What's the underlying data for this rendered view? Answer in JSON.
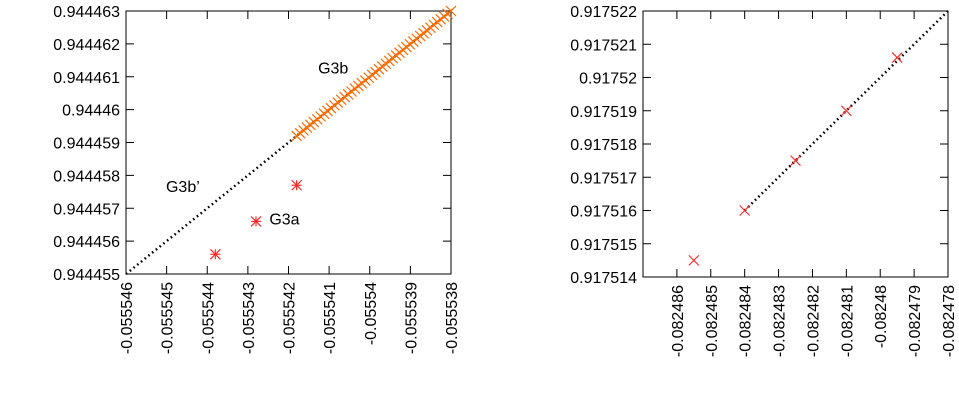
{
  "chart_data": [
    {
      "type": "scatter",
      "title": "",
      "xlabel": "",
      "ylabel": "",
      "xlim": [
        -0.055546,
        -0.055538
      ],
      "ylim": [
        0.944455,
        0.944463
      ],
      "grid": false,
      "x_tick_values": [
        -0.055546,
        -0.055545,
        -0.055544,
        -0.055543,
        -0.055542,
        -0.055541,
        -0.05554,
        -0.055539,
        -0.055538
      ],
      "x_tick_labels": [
        "-0.055546",
        "-0.055545",
        "-0.055544",
        "-0.055543",
        "-0.055542",
        "-0.055541",
        "-0.05554",
        "-0.055539",
        "-0.055538"
      ],
      "y_tick_values": [
        0.944455,
        0.944456,
        0.944457,
        0.944458,
        0.944459,
        0.94446,
        0.944461,
        0.944462,
        0.944463
      ],
      "y_tick_labels": [
        "0.944455",
        "0.944456",
        "0.944457",
        "0.944458",
        "0.944459",
        "0.94446",
        "0.944461",
        "0.944462",
        "0.944463"
      ],
      "dotted_line": {
        "x": [
          -0.055546,
          -0.055538
        ],
        "y": [
          0.944455,
          0.944463
        ],
        "color": "#000000"
      },
      "series": [
        {
          "marker": "star",
          "color": "#ff2a2a",
          "points": [
            {
              "x": -0.0555438,
              "y": 0.9444556
            },
            {
              "x": -0.0555428,
              "y": 0.9444566
            },
            {
              "x": -0.0555418,
              "y": 0.9444577
            }
          ]
        },
        {
          "marker": "x",
          "color": "#ff6a00",
          "dense_diagonal": {
            "x_start": -0.0555418,
            "x_end": -0.055538,
            "count": 46
          }
        }
      ],
      "annotations": [
        {
          "text": "G3b",
          "x": -0.0555409,
          "y": 0.9444611
        },
        {
          "text": "G3b’",
          "x": -0.0555446,
          "y": 0.9444575
        },
        {
          "text": "G3a",
          "x": -0.0555421,
          "y": 0.9444565
        }
      ]
    },
    {
      "type": "scatter",
      "title": "",
      "xlabel": "",
      "ylabel": "",
      "xlim": [
        -0.082487,
        -0.082478
      ],
      "ylim": [
        0.917514,
        0.917522
      ],
      "grid": false,
      "x_tick_values": [
        -0.082486,
        -0.082485,
        -0.082484,
        -0.082483,
        -0.082482,
        -0.082481,
        -0.08248,
        -0.082479,
        -0.082478
      ],
      "x_tick_labels": [
        "-0.082486",
        "-0.082485",
        "-0.082484",
        "-0.082483",
        "-0.082482",
        "-0.082481",
        "-0.08248",
        "-0.082479",
        "-0.082478"
      ],
      "y_tick_values": [
        0.917514,
        0.917515,
        0.917516,
        0.917517,
        0.917518,
        0.917519,
        0.91752,
        0.917521,
        0.917522
      ],
      "y_tick_labels": [
        "0.917514",
        "0.917515",
        "0.917516",
        "0.917517",
        "0.917518",
        "0.917519",
        "0.91752",
        "0.917521",
        "0.917522"
      ],
      "dotted_line": {
        "x": [
          -0.082484,
          -0.082478
        ],
        "y": [
          0.917516,
          0.917522
        ],
        "color": "#000000"
      },
      "series": [
        {
          "marker": "x",
          "color": "#ff2a2a",
          "points": [
            {
              "x": -0.0824855,
              "y": 0.9175145
            },
            {
              "x": -0.082484,
              "y": 0.917516
            },
            {
              "x": -0.0824825,
              "y": 0.9175175
            },
            {
              "x": -0.082481,
              "y": 0.917519
            },
            {
              "x": -0.0824795,
              "y": 0.9175206
            }
          ]
        }
      ],
      "annotations": []
    }
  ]
}
